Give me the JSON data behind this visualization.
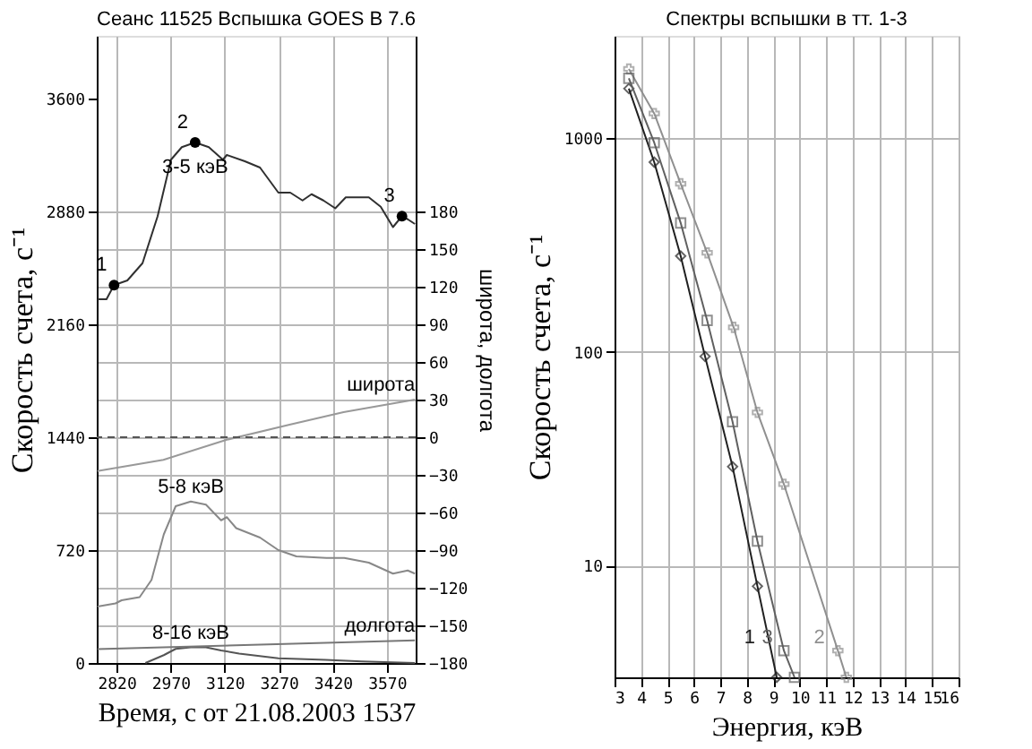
{
  "chart_data": [
    {
      "type": "line",
      "title": "Сеанс 11525  Вспышка  GOES  В 7.6",
      "xlabel": "Время, с от 21.08.2003 1537",
      "ylabel": "Скорость счета, с⁻¹",
      "y2label": "широта, долгота",
      "xlim": [
        2765,
        3650
      ],
      "xticks": [
        2820,
        2970,
        3120,
        3270,
        3420,
        3570
      ],
      "ylim": [
        0,
        4000
      ],
      "yticks": [
        0,
        720,
        1440,
        2160,
        2880,
        3600
      ],
      "y2lim": [
        -180,
        320
      ],
      "y2ticks": [
        -180,
        -150,
        -120,
        -90,
        -60,
        -30,
        0,
        30,
        60,
        90,
        120,
        150,
        180
      ],
      "grid": true,
      "series": [
        {
          "type": "line",
          "name": "3-5 кэВ",
          "color": "#303030",
          "marker": "none",
          "x": [
            2767,
            2792,
            2813,
            2850,
            2892,
            2934,
            2971,
            3001,
            3038,
            3076,
            3115,
            3126,
            3176,
            3218,
            3269,
            3302,
            3336,
            3361,
            3394,
            3427,
            3456,
            3520,
            3553,
            3587,
            3612,
            3628,
            3648
          ],
          "values": [
            2320,
            2320,
            2410,
            2440,
            2550,
            2850,
            3210,
            3290,
            3320,
            3290,
            3210,
            3240,
            3200,
            3160,
            3000,
            3000,
            2950,
            2990,
            2950,
            2900,
            2970,
            2970,
            2910,
            2780,
            2850,
            2830,
            2800
          ]
        },
        {
          "type": "scatter",
          "color": "#000000",
          "marker": "circle",
          "x": [
            2813,
            3038,
            3612
          ],
          "values": [
            2410,
            3320,
            2850
          ]
        },
        {
          "type": "line",
          "name": "5-8 кэВ",
          "color": "#888888",
          "marker": "none",
          "x": [
            2767,
            2817,
            2834,
            2884,
            2917,
            2951,
            2984,
            3026,
            3068,
            3110,
            3126,
            3152,
            3218,
            3269,
            3319,
            3402,
            3452,
            3520,
            3587,
            3628,
            3648
          ],
          "values": [
            360,
            380,
            400,
            420,
            530,
            820,
            1000,
            1030,
            1010,
            910,
            930,
            860,
            800,
            720,
            680,
            670,
            670,
            640,
            570,
            590,
            570
          ]
        },
        {
          "type": "line",
          "name": "8-16 кэВ",
          "color": "#555555",
          "marker": "none",
          "x": [
            2900,
            2951,
            2984,
            3026,
            3068,
            3110,
            3160,
            3269,
            3400,
            3500,
            3648
          ],
          "values": [
            0,
            50,
            90,
            100,
            100,
            80,
            60,
            30,
            20,
            10,
            0
          ]
        },
        {
          "type": "line",
          "name": "широта",
          "color": "#999999",
          "marker": "none",
          "axis": "y2",
          "x": [
            2767,
            2950,
            3126,
            3300,
            3450,
            3648
          ],
          "values": [
            -27,
            -18,
            -2,
            10,
            20,
            30
          ]
        },
        {
          "type": "line",
          "name": "долгота",
          "color": "#777777",
          "marker": "none",
          "axis": "y2",
          "x": [
            2767,
            3648
          ],
          "values": [
            -169,
            -162
          ]
        }
      ],
      "ref_lines": [
        {
          "axis": "y2",
          "value": 0,
          "color": "#555555",
          "line_style": "dashed"
        }
      ],
      "annotations": [
        {
          "text": "1",
          "x": 2813,
          "y": 2410
        },
        {
          "text": "2",
          "x": 3038,
          "y": 3320
        },
        {
          "text": "3",
          "x": 3612,
          "y": 2850
        }
      ]
    },
    {
      "type": "line",
      "title": "Спектры вспышки в тт. 1-3",
      "xlabel": "Энергия, кэВ",
      "ylabel": "Скорость счета, с⁻¹",
      "log": true,
      "xlim": [
        3,
        16
      ],
      "xticks": [
        3,
        4,
        5,
        6,
        7,
        8,
        9,
        10,
        11,
        12,
        13,
        14,
        15,
        16
      ],
      "ylim": [
        3,
        3000
      ],
      "yticks": [
        10,
        100,
        1000
      ],
      "grid": true,
      "series": [
        {
          "name": "1",
          "color": "#202020",
          "marker": "diamond",
          "x": [
            3.54,
            4.5,
            5.5,
            6.42,
            7.46,
            8.4,
            9.13
          ],
          "values": [
            1700,
            770,
            280,
            95,
            29,
            8,
            3
          ]
        },
        {
          "name": "2",
          "color": "#909090",
          "marker": "cross",
          "x": [
            3.54,
            4.5,
            5.5,
            6.5,
            7.5,
            8.4,
            9.4,
            11.44,
            11.76
          ],
          "values": [
            2100,
            1300,
            610,
            290,
            130,
            52,
            24,
            4,
            3
          ]
        },
        {
          "name": "3",
          "color": "#606060",
          "marker": "square",
          "x": [
            3.54,
            4.5,
            5.5,
            6.5,
            7.46,
            8.4,
            9.4,
            9.8
          ],
          "values": [
            1900,
            950,
            400,
            140,
            47,
            13,
            4,
            3
          ]
        }
      ]
    }
  ]
}
